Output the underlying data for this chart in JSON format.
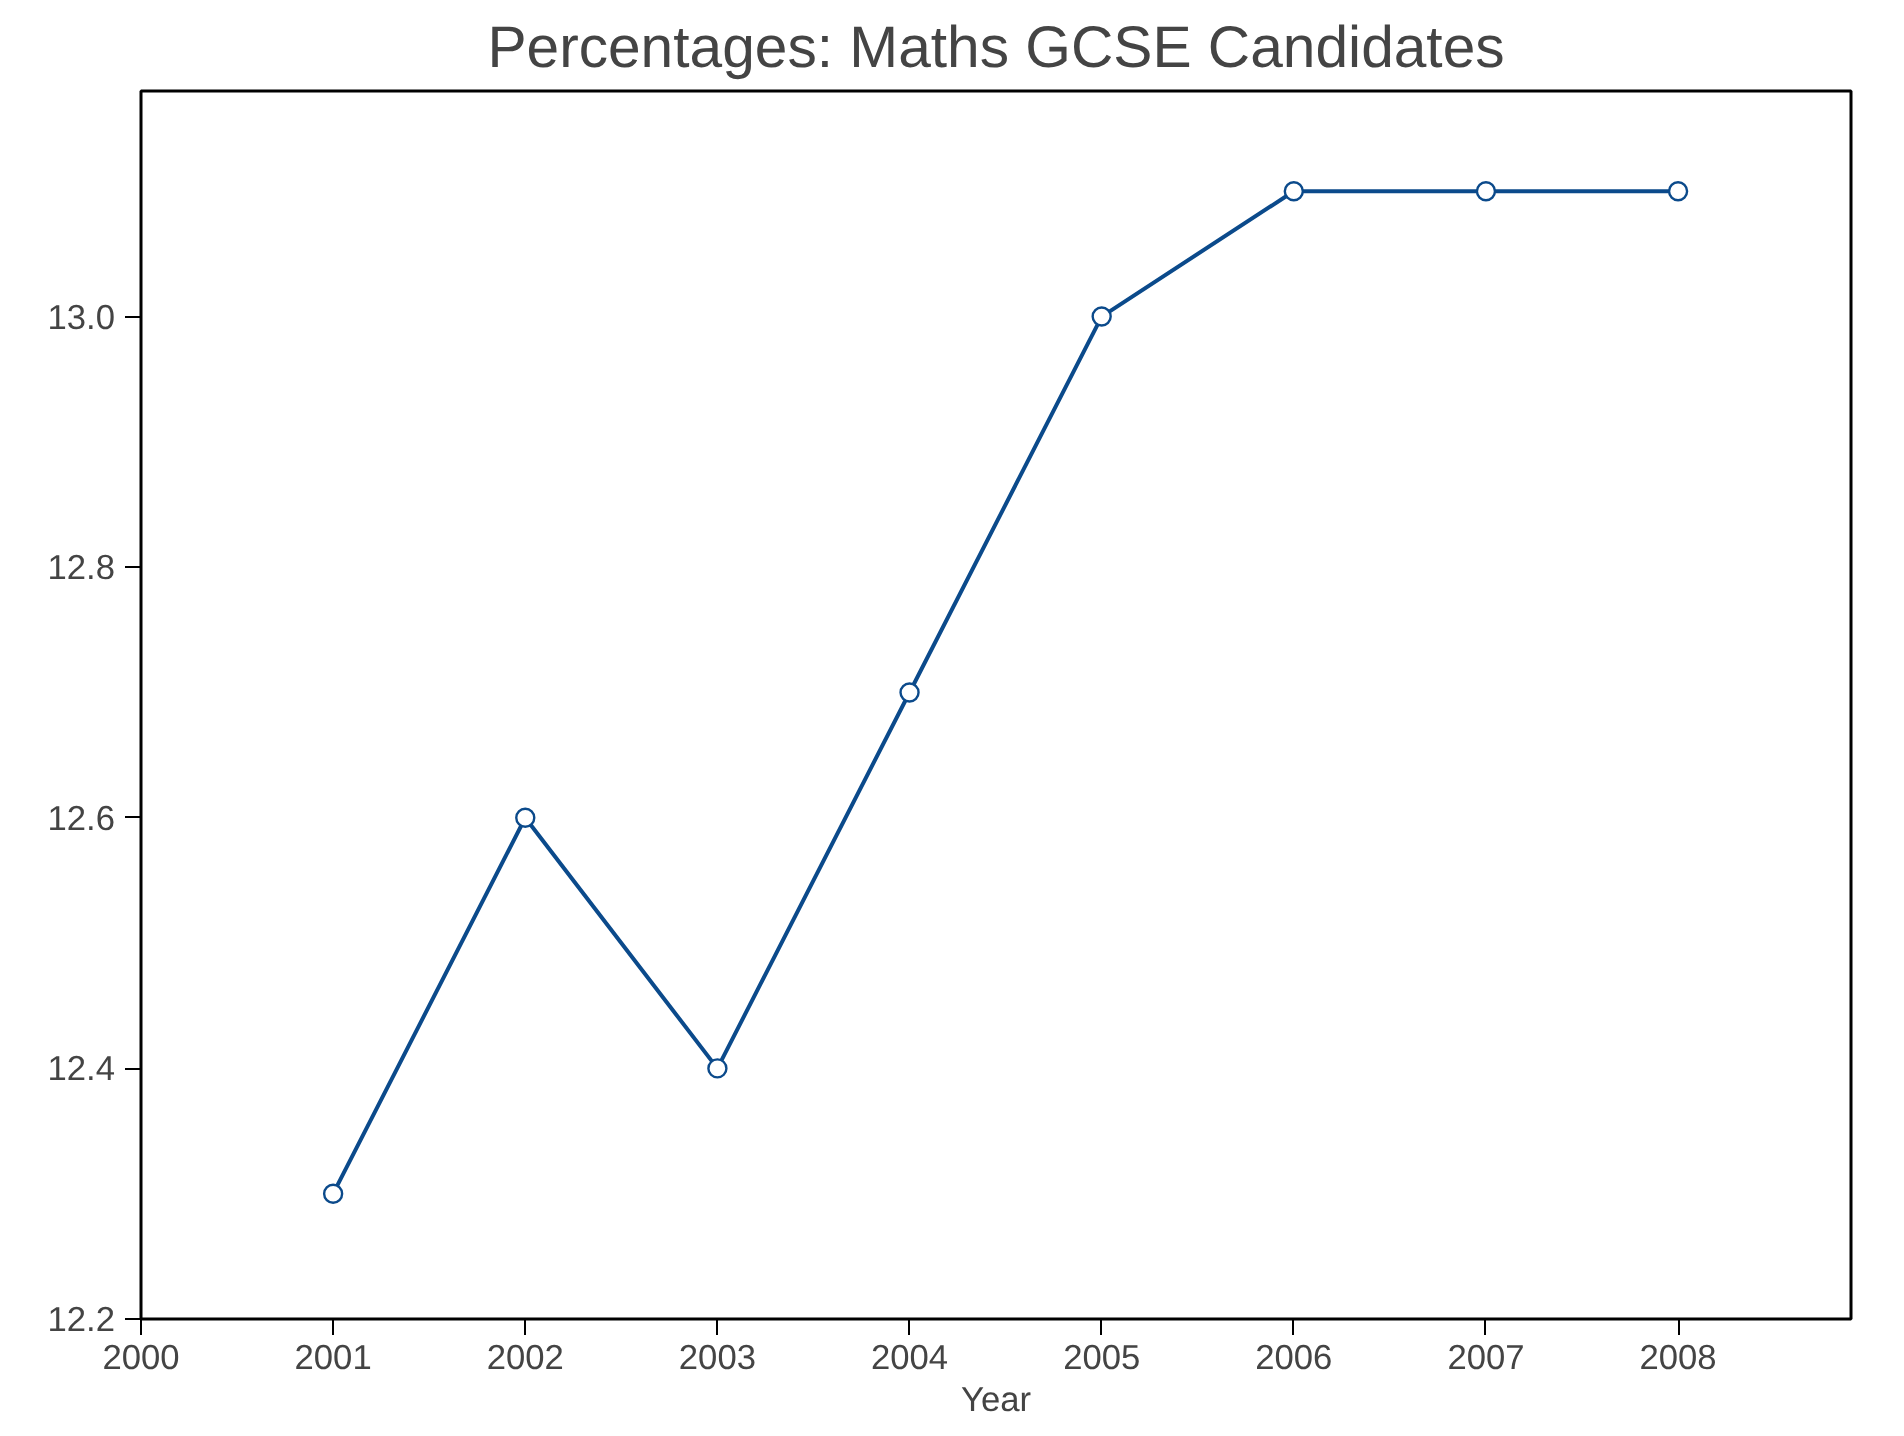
{
  "chart_data": {
    "type": "line",
    "title": "Percentages: Maths GCSE Candidates",
    "xlabel": "Year",
    "x": [
      2001,
      2002,
      2003,
      2004,
      2005,
      2006,
      2007,
      2008
    ],
    "series": [
      {
        "color": "#0b4a8b",
        "values": [
          12.3,
          12.6,
          12.4,
          12.7,
          13.0,
          13.1,
          13.1,
          13.1
        ]
      }
    ],
    "xlim": [
      2000,
      2008.9
    ],
    "xticks": [
      2000,
      2001,
      2002,
      2003,
      2004,
      2005,
      2006,
      2007,
      2008
    ],
    "ylim": [
      12.2,
      13.18
    ],
    "yticks": [
      {
        "value": 12.2,
        "label": "12.2"
      },
      {
        "value": 12.4,
        "label": "12.4"
      },
      {
        "value": 12.6,
        "label": "12.6"
      },
      {
        "value": 12.8,
        "label": "12.8"
      },
      {
        "value": 13.0,
        "label": "13.0"
      }
    ],
    "grid": false,
    "marker": "circle",
    "line_style": "solid"
  }
}
